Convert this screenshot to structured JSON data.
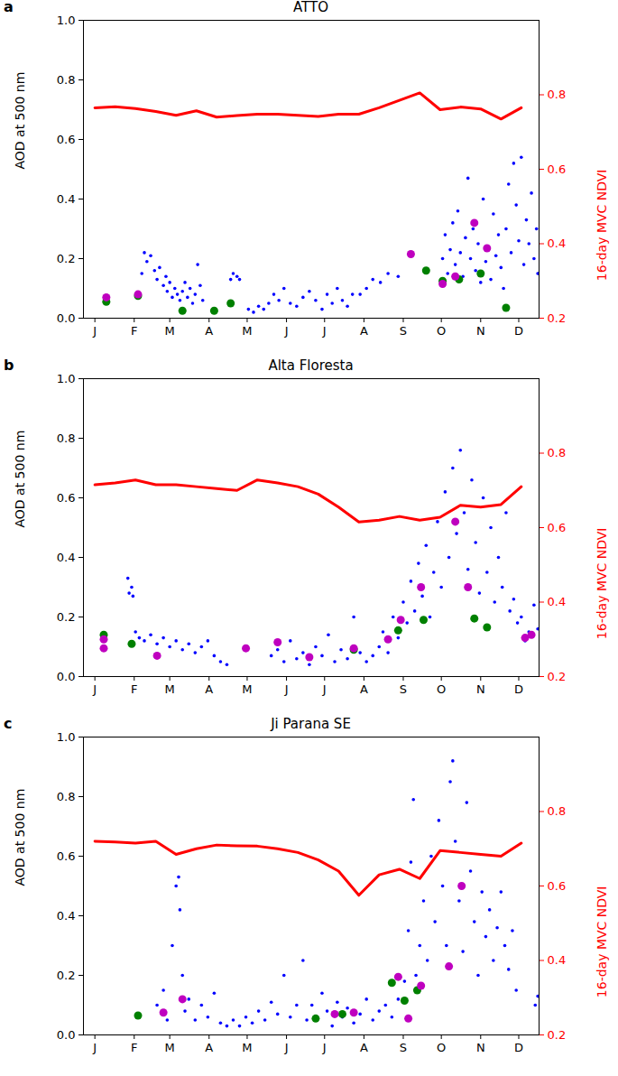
{
  "chart_data": [
    {
      "type": "scatter",
      "panel": "a",
      "title": "ATTO",
      "ylabel": "AOD at 500 nm",
      "y2label": "16-day MVC NDVI",
      "xlim": [
        -8,
        351
      ],
      "xticks": [
        {
          "value": 1,
          "label": "J"
        },
        {
          "value": 32,
          "label": "F"
        },
        {
          "value": 60,
          "label": "M"
        },
        {
          "value": 91,
          "label": "A"
        },
        {
          "value": 121,
          "label": "M"
        },
        {
          "value": 152,
          "label": "J"
        },
        {
          "value": 182,
          "label": "J"
        },
        {
          "value": 213,
          "label": "A"
        },
        {
          "value": 244,
          "label": "S"
        },
        {
          "value": 274,
          "label": "O"
        },
        {
          "value": 305,
          "label": "N"
        },
        {
          "value": 335,
          "label": "D"
        }
      ],
      "ylim": [
        0,
        1
      ],
      "yticks": [
        {
          "value": 0,
          "label": "0.0"
        },
        0.2,
        0.4,
        0.6,
        0.8,
        {
          "value": 1,
          "label": "1.0"
        }
      ],
      "y2lim": [
        0.2,
        1.0
      ],
      "y2ticks": [
        0.2,
        0.4,
        0.6,
        0.8
      ],
      "series": [
        {
          "type": "scatter",
          "marker": ".",
          "color": "#0000ff",
          "x": [
            38,
            40,
            42,
            45,
            48,
            50,
            52,
            55,
            57,
            58,
            60,
            62,
            64,
            66,
            68,
            70,
            72,
            74,
            76,
            78,
            80,
            82,
            84,
            86,
            108,
            110,
            113,
            115,
            122,
            126,
            130,
            134,
            138,
            142,
            146,
            150,
            155,
            160,
            165,
            170,
            175,
            180,
            184,
            188,
            192,
            196,
            200,
            204,
            210,
            215,
            220,
            226,
            232,
            240,
            275,
            277,
            279,
            281,
            283,
            285,
            287,
            289,
            291,
            293,
            295,
            297,
            299,
            301,
            303,
            305,
            307,
            309,
            311,
            313,
            315,
            317,
            319,
            321,
            323,
            325,
            327,
            329,
            331,
            333,
            335,
            337,
            339,
            341,
            343,
            345,
            347,
            349,
            350
          ],
          "values": [
            0.15,
            0.22,
            0.19,
            0.21,
            0.16,
            0.13,
            0.17,
            0.11,
            0.14,
            0.09,
            0.12,
            0.07,
            0.1,
            0.08,
            0.06,
            0.09,
            0.12,
            0.07,
            0.1,
            0.05,
            0.08,
            0.18,
            0.11,
            0.06,
            0.13,
            0.15,
            0.14,
            0.13,
            0.03,
            0.02,
            0.04,
            0.03,
            0.05,
            0.08,
            0.06,
            0.1,
            0.05,
            0.04,
            0.07,
            0.09,
            0.06,
            0.03,
            0.08,
            0.05,
            0.1,
            0.06,
            0.04,
            0.08,
            0.08,
            0.1,
            0.13,
            0.12,
            0.15,
            0.14,
            0.2,
            0.28,
            0.15,
            0.23,
            0.32,
            0.18,
            0.36,
            0.22,
            0.14,
            0.27,
            0.47,
            0.2,
            0.3,
            0.16,
            0.25,
            0.12,
            0.4,
            0.19,
            0.24,
            0.13,
            0.35,
            0.21,
            0.28,
            0.17,
            0.1,
            0.3,
            0.45,
            0.22,
            0.52,
            0.38,
            0.26,
            0.54,
            0.18,
            0.33,
            0.25,
            0.42,
            0.2,
            0.3,
            0.15
          ]
        },
        {
          "type": "scatter",
          "marker": "o",
          "color": "#008000",
          "x": [
            10,
            35,
            70,
            95,
            108,
            262,
            275,
            288,
            305,
            325
          ],
          "values": [
            0.055,
            0.075,
            0.025,
            0.025,
            0.05,
            0.16,
            0.125,
            0.13,
            0.15,
            0.035
          ]
        },
        {
          "type": "scatter",
          "marker": "o",
          "color": "#bf00bf",
          "x": [
            10,
            35,
            250,
            275,
            285,
            300,
            310
          ],
          "values": [
            0.07,
            0.08,
            0.215,
            0.115,
            0.14,
            0.32,
            0.235
          ]
        },
        {
          "type": "line",
          "axis": "y2",
          "color": "#ff0000",
          "x": [
            1,
            17,
            33,
            49,
            65,
            81,
            97,
            113,
            129,
            145,
            161,
            177,
            193,
            209,
            225,
            241,
            257,
            273,
            289,
            305,
            321,
            337
          ],
          "values": [
            0.765,
            0.768,
            0.763,
            0.755,
            0.745,
            0.757,
            0.74,
            0.744,
            0.748,
            0.748,
            0.745,
            0.742,
            0.748,
            0.748,
            0.765,
            0.785,
            0.805,
            0.76,
            0.767,
            0.762,
            0.735,
            0.765
          ]
        }
      ]
    },
    {
      "type": "scatter",
      "panel": "b",
      "title": "Alta Floresta",
      "ylabel": "AOD at 500 nm",
      "y2label": "16-day MVC NDVI",
      "xlim": [
        -8,
        351
      ],
      "xticks": [
        {
          "value": 1,
          "label": "J"
        },
        {
          "value": 32,
          "label": "F"
        },
        {
          "value": 60,
          "label": "M"
        },
        {
          "value": 91,
          "label": "A"
        },
        {
          "value": 121,
          "label": "M"
        },
        {
          "value": 152,
          "label": "J"
        },
        {
          "value": 182,
          "label": "J"
        },
        {
          "value": 213,
          "label": "A"
        },
        {
          "value": 244,
          "label": "S"
        },
        {
          "value": 274,
          "label": "O"
        },
        {
          "value": 305,
          "label": "N"
        },
        {
          "value": 335,
          "label": "D"
        }
      ],
      "ylim": [
        0,
        1
      ],
      "yticks": [
        {
          "value": 0,
          "label": "0.0"
        },
        0.2,
        0.4,
        0.6,
        0.8,
        {
          "value": 1,
          "label": "1.0"
        }
      ],
      "y2lim": [
        0.2,
        1.0
      ],
      "y2ticks": [
        0.2,
        0.4,
        0.6,
        0.8
      ],
      "series": [
        {
          "type": "scatter",
          "marker": ".",
          "color": "#0000ff",
          "x": [
            27,
            28,
            30,
            31,
            33,
            36,
            40,
            45,
            50,
            55,
            60,
            65,
            70,
            75,
            80,
            85,
            90,
            95,
            100,
            105,
            140,
            145,
            150,
            155,
            160,
            165,
            170,
            175,
            180,
            185,
            190,
            195,
            200,
            205,
            210,
            215,
            220,
            225,
            228,
            232,
            236,
            240,
            244,
            247,
            250,
            253,
            256,
            259,
            262,
            265,
            268,
            271,
            274,
            277,
            280,
            283,
            286,
            289,
            292,
            295,
            298,
            301,
            304,
            307,
            310,
            313,
            316,
            319,
            322,
            325,
            328,
            331,
            334,
            337,
            340,
            343,
            347,
            350
          ],
          "values": [
            0.33,
            0.28,
            0.3,
            0.27,
            0.15,
            0.13,
            0.12,
            0.14,
            0.11,
            0.13,
            0.1,
            0.12,
            0.09,
            0.11,
            0.08,
            0.1,
            0.12,
            0.07,
            0.05,
            0.04,
            0.07,
            0.09,
            0.05,
            0.12,
            0.06,
            0.08,
            0.04,
            0.1,
            0.07,
            0.14,
            0.05,
            0.09,
            0.06,
            0.2,
            0.08,
            0.05,
            0.07,
            0.1,
            0.15,
            0.08,
            0.2,
            0.13,
            0.25,
            0.18,
            0.32,
            0.22,
            0.38,
            0.27,
            0.44,
            0.2,
            0.35,
            0.52,
            0.3,
            0.62,
            0.4,
            0.7,
            0.48,
            0.76,
            0.55,
            0.36,
            0.66,
            0.45,
            0.28,
            0.6,
            0.35,
            0.5,
            0.25,
            0.4,
            0.3,
            0.55,
            0.22,
            0.26,
            0.18,
            0.2,
            0.12,
            0.15,
            0.24,
            0.16
          ]
        },
        {
          "type": "scatter",
          "marker": "o",
          "color": "#008000",
          "x": [
            8,
            30,
            205,
            240,
            260,
            300,
            310
          ],
          "values": [
            0.14,
            0.11,
            0.09,
            0.155,
            0.19,
            0.195,
            0.165
          ]
        },
        {
          "type": "scatter",
          "marker": "o",
          "color": "#bf00bf",
          "x": [
            8,
            8,
            50,
            120,
            145,
            170,
            205,
            232,
            242,
            258,
            285,
            295,
            340,
            345
          ],
          "values": [
            0.095,
            0.125,
            0.07,
            0.095,
            0.115,
            0.065,
            0.095,
            0.125,
            0.19,
            0.3,
            0.52,
            0.3,
            0.13,
            0.14
          ]
        },
        {
          "type": "line",
          "axis": "y2",
          "color": "#ff0000",
          "x": [
            1,
            17,
            33,
            49,
            65,
            81,
            97,
            113,
            129,
            145,
            161,
            177,
            193,
            209,
            225,
            241,
            257,
            273,
            289,
            305,
            321,
            337
          ],
          "values": [
            0.715,
            0.72,
            0.728,
            0.715,
            0.715,
            0.71,
            0.705,
            0.7,
            0.728,
            0.72,
            0.71,
            0.69,
            0.655,
            0.615,
            0.62,
            0.63,
            0.62,
            0.628,
            0.66,
            0.655,
            0.662,
            0.71
          ]
        }
      ]
    },
    {
      "type": "scatter",
      "panel": "c",
      "title": "Ji Parana SE",
      "ylabel": "AOD at 500 nm",
      "y2label": "16-day MVC NDVI",
      "xlim": [
        -8,
        351
      ],
      "xticks": [
        {
          "value": 1,
          "label": "J"
        },
        {
          "value": 32,
          "label": "F"
        },
        {
          "value": 60,
          "label": "M"
        },
        {
          "value": 91,
          "label": "A"
        },
        {
          "value": 121,
          "label": "M"
        },
        {
          "value": 152,
          "label": "J"
        },
        {
          "value": 182,
          "label": "J"
        },
        {
          "value": 213,
          "label": "A"
        },
        {
          "value": 244,
          "label": "S"
        },
        {
          "value": 274,
          "label": "O"
        },
        {
          "value": 305,
          "label": "N"
        },
        {
          "value": 335,
          "label": "D"
        }
      ],
      "ylim": [
        0,
        1
      ],
      "yticks": [
        {
          "value": 0,
          "label": "0.0"
        },
        0.2,
        0.4,
        0.6,
        0.8,
        {
          "value": 1,
          "label": "1.0"
        }
      ],
      "y2lim": [
        0.2,
        1.0
      ],
      "y2ticks": [
        0.2,
        0.4,
        0.6,
        0.8
      ],
      "series": [
        {
          "type": "scatter",
          "marker": ".",
          "color": "#0000ff",
          "x": [
            50,
            55,
            58,
            62,
            65,
            67,
            68,
            70,
            72,
            75,
            80,
            85,
            90,
            95,
            100,
            105,
            110,
            115,
            120,
            125,
            130,
            135,
            140,
            145,
            150,
            155,
            160,
            165,
            168,
            172,
            176,
            180,
            184,
            188,
            192,
            196,
            200,
            205,
            210,
            215,
            220,
            225,
            230,
            235,
            240,
            245,
            248,
            250,
            252,
            254,
            257,
            260,
            263,
            266,
            269,
            272,
            275,
            278,
            281,
            283,
            285,
            288,
            291,
            294,
            297,
            300,
            303,
            306,
            309,
            312,
            315,
            318,
            321,
            324,
            327,
            330,
            333,
            348,
            350
          ],
          "values": [
            0.1,
            0.15,
            0.05,
            0.3,
            0.5,
            0.53,
            0.42,
            0.2,
            0.08,
            0.12,
            0.05,
            0.1,
            0.06,
            0.14,
            0.04,
            0.03,
            0.05,
            0.03,
            0.06,
            0.04,
            0.08,
            0.05,
            0.11,
            0.07,
            0.2,
            0.06,
            0.1,
            0.25,
            0.05,
            0.1,
            0.06,
            0.14,
            0.08,
            0.03,
            0.11,
            0.06,
            0.09,
            0.04,
            0.07,
            0.12,
            0.05,
            0.08,
            0.1,
            0.06,
            0.12,
            0.18,
            0.35,
            0.58,
            0.79,
            0.2,
            0.3,
            0.45,
            0.25,
            0.6,
            0.38,
            0.72,
            0.5,
            0.3,
            0.85,
            0.92,
            0.65,
            0.45,
            0.28,
            0.78,
            0.55,
            0.38,
            0.2,
            0.48,
            0.33,
            0.42,
            0.25,
            0.36,
            0.48,
            0.3,
            0.22,
            0.35,
            0.15,
            0.1,
            0.13
          ]
        },
        {
          "type": "scatter",
          "marker": "o",
          "color": "#008000",
          "x": [
            35,
            175,
            196,
            235,
            245,
            255
          ],
          "values": [
            0.065,
            0.055,
            0.07,
            0.175,
            0.115,
            0.15
          ]
        },
        {
          "type": "scatter",
          "marker": "o",
          "color": "#bf00bf",
          "x": [
            55,
            70,
            190,
            205,
            240,
            248,
            258,
            280,
            290
          ],
          "values": [
            0.075,
            0.12,
            0.07,
            0.075,
            0.195,
            0.055,
            0.165,
            0.23,
            0.5
          ]
        },
        {
          "type": "line",
          "axis": "y2",
          "color": "#ff0000",
          "x": [
            1,
            17,
            33,
            49,
            65,
            81,
            97,
            113,
            129,
            145,
            161,
            177,
            193,
            209,
            225,
            241,
            257,
            273,
            289,
            305,
            321,
            337
          ],
          "values": [
            0.72,
            0.718,
            0.715,
            0.72,
            0.685,
            0.7,
            0.71,
            0.708,
            0.707,
            0.7,
            0.69,
            0.67,
            0.64,
            0.575,
            0.63,
            0.645,
            0.62,
            0.695,
            0.69,
            0.685,
            0.68,
            0.715
          ]
        }
      ]
    }
  ]
}
